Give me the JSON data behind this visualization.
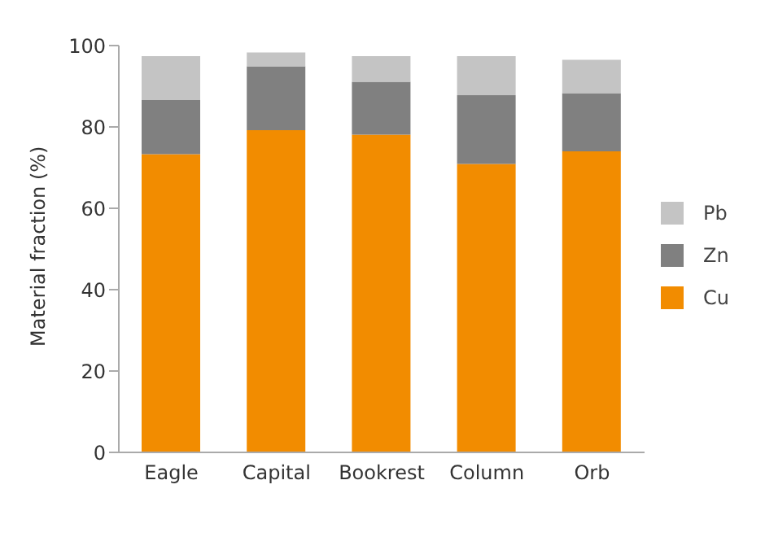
{
  "chart_data": {
    "type": "bar",
    "stacked": true,
    "ylabel": "Material fraction (%)",
    "categories": [
      "Eagle",
      "Capital",
      "Bookrest",
      "Column",
      "Orb"
    ],
    "series": [
      {
        "name": "Cu",
        "color": "#f28c00",
        "values": [
          73.3,
          79.2,
          78.1,
          70.9,
          74.0
        ]
      },
      {
        "name": "Zn",
        "color": "#808080",
        "values": [
          13.3,
          15.7,
          13.0,
          16.9,
          14.3
        ]
      },
      {
        "name": "Pb",
        "color": "#c4c4c4",
        "values": [
          10.8,
          3.4,
          6.3,
          9.6,
          8.2
        ]
      }
    ],
    "ylim": [
      0,
      100
    ],
    "yticks": [
      0,
      20,
      40,
      60,
      80,
      100
    ],
    "grid": false,
    "legend": "right"
  }
}
